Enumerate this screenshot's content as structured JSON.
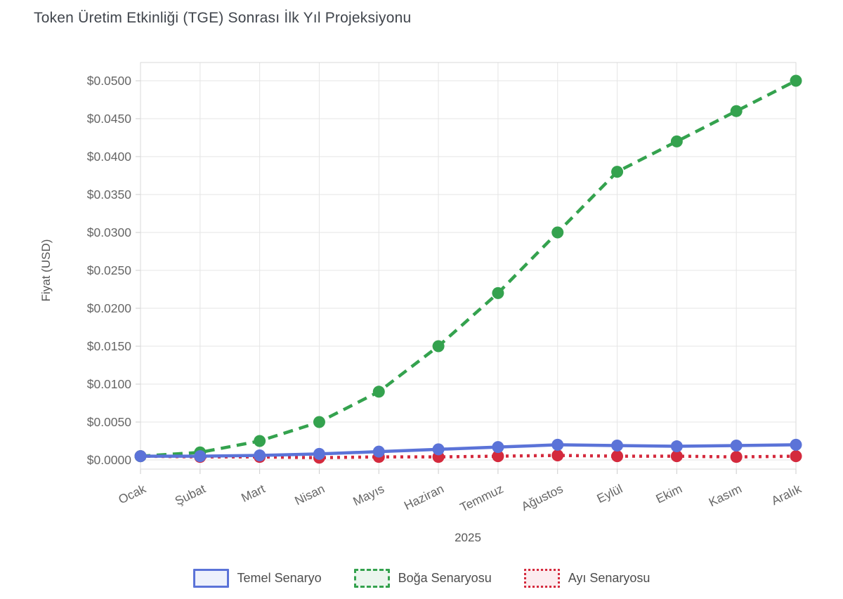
{
  "page": {
    "background": "#ffffff"
  },
  "chart_data": {
    "type": "line",
    "title": "Token Üretim Etkinliği (TGE) Sonrası İlk Yıl Projeksiyonu",
    "x_axis_title": "2025",
    "y_axis_title": "Fiyat (USD)",
    "categories": [
      "Ocak",
      "Şubat",
      "Mart",
      "Nisan",
      "Mayıs",
      "Haziran",
      "Temmuz",
      "Ağustos",
      "Eylül",
      "Ekim",
      "Kasım",
      "Aralık"
    ],
    "ylim": [
      0,
      0.05
    ],
    "ytick_step": 0.005,
    "y_ticks": [
      "$0.0000",
      "$0.0050",
      "$0.0100",
      "$0.0150",
      "$0.0200",
      "$0.0250",
      "$0.0300",
      "$0.0350",
      "$0.0400",
      "$0.0450",
      "$0.0500"
    ],
    "grid": true,
    "legend_position": "bottom",
    "series": [
      {
        "name": "Temel Senaryo",
        "style": "solid",
        "color": "#5b73d8",
        "fill": "#edf1fc",
        "values": [
          0.0005,
          0.0005,
          0.0006,
          0.0008,
          0.0011,
          0.0014,
          0.0017,
          0.002,
          0.0019,
          0.0018,
          0.0019,
          0.002
        ]
      },
      {
        "name": "Boğa Senaryosu",
        "style": "dashed",
        "color": "#34a24e",
        "fill": "#ebf5ee",
        "values": [
          0.0005,
          0.001,
          0.0025,
          0.005,
          0.009,
          0.015,
          0.022,
          0.03,
          0.038,
          0.042,
          0.046,
          0.05
        ]
      },
      {
        "name": "Ayı Senaryosu",
        "style": "dotted",
        "color": "#d42a3d",
        "fill": "#fcecef",
        "values": [
          0.0005,
          0.0004,
          0.0004,
          0.0003,
          0.0004,
          0.0004,
          0.0005,
          0.0006,
          0.0005,
          0.0005,
          0.0004,
          0.0005
        ]
      }
    ],
    "colors": {
      "grid": "#e5e5e5",
      "plot_border": "#d9d9d9",
      "tick_mark": "#cccccc",
      "tick_label": "#666666",
      "title_text": "#40454c",
      "axis_title_text": "#575757",
      "legend_text": "#4e4e4e"
    }
  }
}
